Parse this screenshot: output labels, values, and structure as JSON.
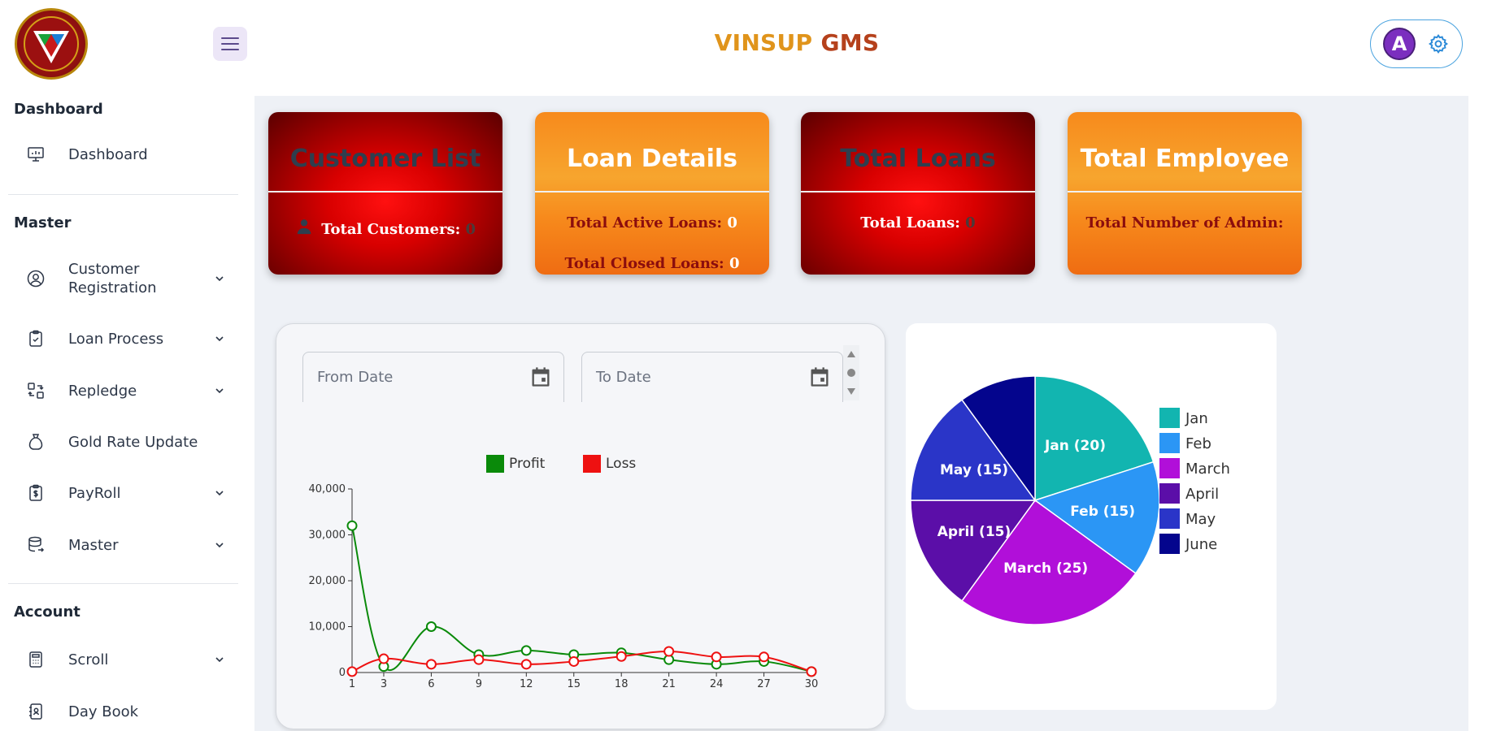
{
  "header": {
    "title_part1": "VINSUP",
    "title_part2": "GMS",
    "avatar_letter": "A",
    "logo_icon": "vinsup-logo-icon"
  },
  "sidebar": {
    "sections": [
      {
        "heading": "Dashboard"
      },
      {
        "heading": "Master"
      },
      {
        "heading": "Account"
      }
    ],
    "items": [
      {
        "label": "Dashboard",
        "icon": "monitor-icon",
        "chevron": false
      },
      {
        "label": "Customer Registration",
        "icon": "user-circle-icon",
        "chevron": true
      },
      {
        "label": "Loan Process",
        "icon": "clipboard-icon",
        "chevron": true
      },
      {
        "label": "Repledge",
        "icon": "exchange-icon",
        "chevron": true
      },
      {
        "label": "Gold Rate Update",
        "icon": "money-bag-icon",
        "chevron": false
      },
      {
        "label": "PayRoll",
        "icon": "payroll-icon",
        "chevron": true
      },
      {
        "label": "Master",
        "icon": "database-icon",
        "chevron": true
      },
      {
        "label": "Scroll",
        "icon": "calculator-icon",
        "chevron": true
      },
      {
        "label": "Day Book",
        "icon": "contacts-book-icon",
        "chevron": false
      }
    ]
  },
  "cards": [
    {
      "title": "Customer List",
      "style": "red",
      "lines": [
        {
          "label": "Total Customers:",
          "value": "0"
        }
      ]
    },
    {
      "title": "Loan Details",
      "style": "orange",
      "lines": [
        {
          "label": "Total Active Loans:",
          "value": "0"
        },
        {
          "label": "Total Closed Loans:",
          "value": "0"
        }
      ]
    },
    {
      "title": "Total Loans",
      "style": "red",
      "lines": [
        {
          "label": "Total Loans:",
          "value": "0"
        }
      ]
    },
    {
      "title": "Total Employee",
      "style": "orange",
      "lines": [
        {
          "label": "Total Number of Admin:",
          "value": ""
        }
      ]
    }
  ],
  "filters": {
    "from_placeholder": "From Date",
    "to_placeholder": "To Date"
  },
  "colors": {
    "profit": "#0a8a0a",
    "loss": "#ee1111",
    "pie": [
      "#12b5b0",
      "#2b96f5",
      "#b10fd9",
      "#5b0ea8",
      "#2a35c8",
      "#04058d"
    ]
  },
  "chart_data": [
    {
      "type": "line",
      "x": [
        1,
        3,
        6,
        9,
        12,
        15,
        18,
        21,
        24,
        27,
        30
      ],
      "x_ticks": [
        "1",
        "3",
        "6",
        "9",
        "12",
        "15",
        "18",
        "21",
        "24",
        "27",
        "30"
      ],
      "y_ticks": [
        "0",
        "10,000",
        "20,000",
        "30,000",
        "40,000"
      ],
      "ylim": [
        0,
        40000
      ],
      "legend_placement": "top",
      "series": [
        {
          "name": "Profit",
          "values": [
            32000,
            1300,
            10000,
            3900,
            4800,
            3900,
            4300,
            2800,
            1800,
            2400,
            200
          ]
        },
        {
          "name": "Loss",
          "values": [
            200,
            3000,
            1800,
            2800,
            1800,
            2400,
            3500,
            4600,
            3400,
            3400,
            200
          ]
        }
      ]
    },
    {
      "type": "pie",
      "categories": [
        "Jan",
        "Feb",
        "March",
        "April",
        "May",
        "June"
      ],
      "values": [
        20,
        15,
        25,
        15,
        15,
        10
      ],
      "slice_labels": [
        "Jan (20)",
        "Feb (15)",
        "March (25)",
        "April (15)",
        "May (15)",
        ""
      ],
      "legend_placement": "right"
    }
  ]
}
